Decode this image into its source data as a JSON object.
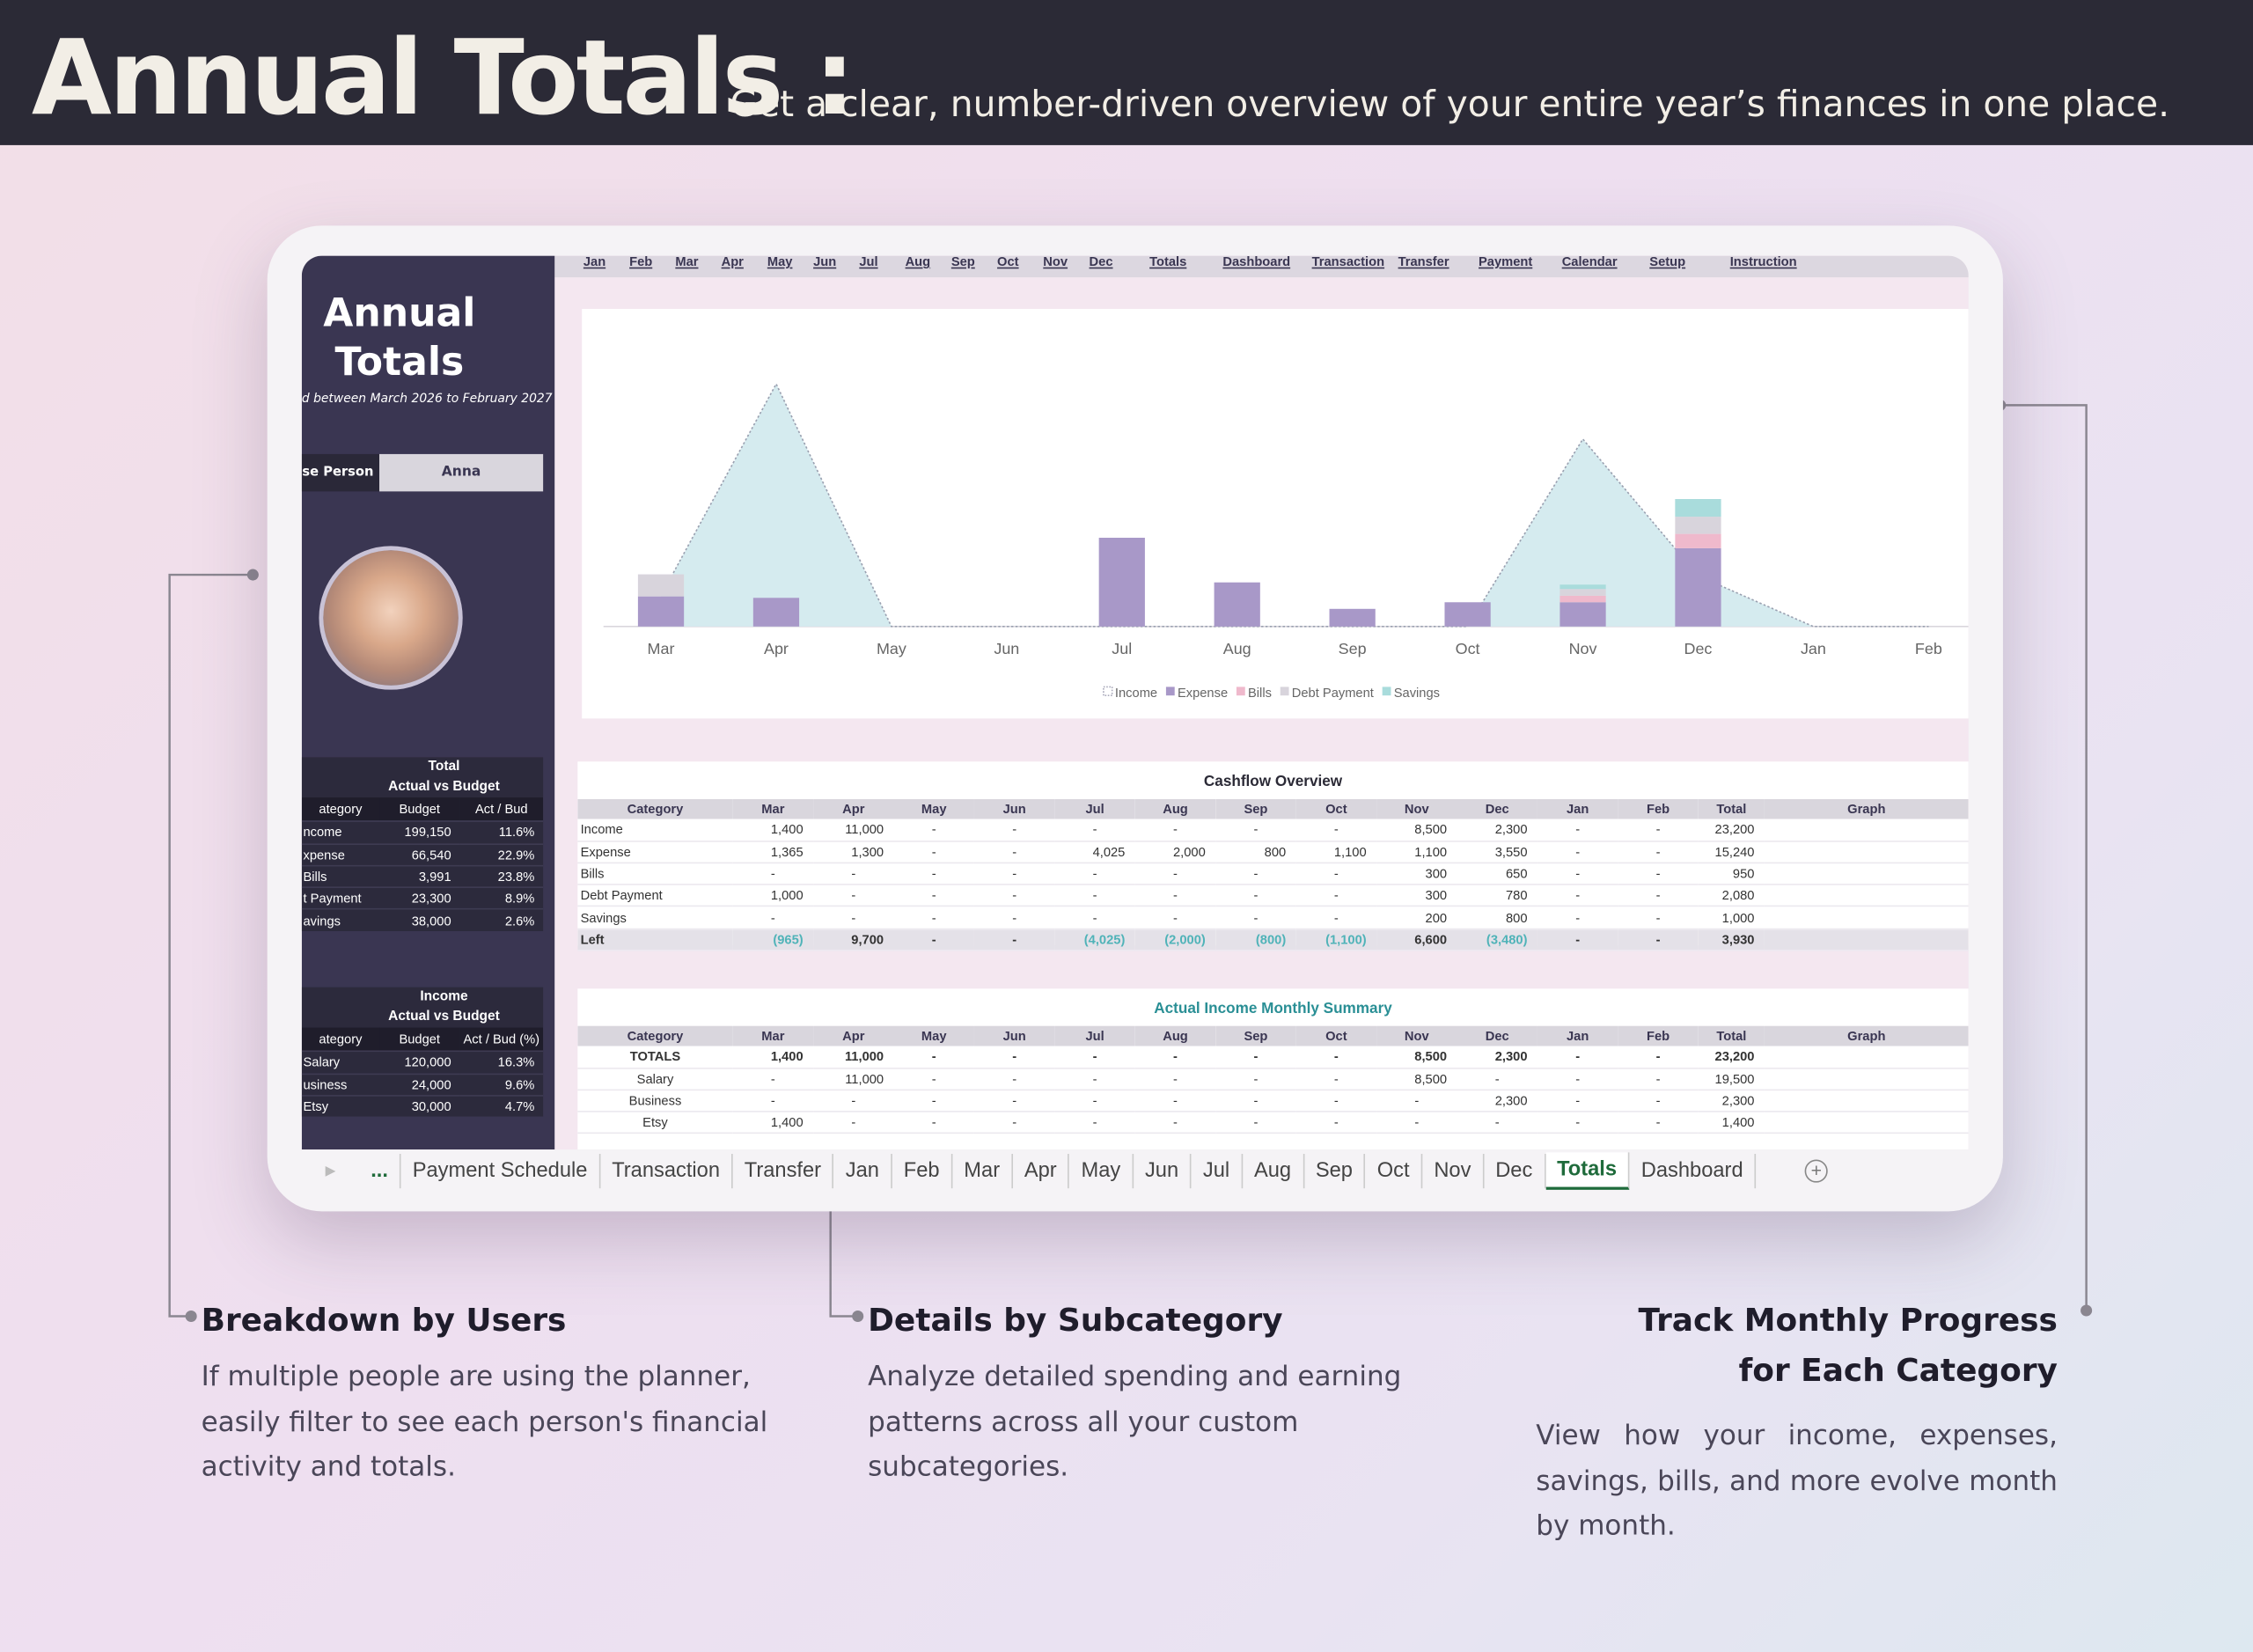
{
  "header": {
    "title": "Annual Totals :",
    "subtitle": "Get a clear, number-driven overview of your entire year’s finances in one place."
  },
  "nav_links": [
    "Jan",
    "Feb",
    "Mar",
    "Apr",
    "May",
    "Jun",
    "Jul",
    "Aug",
    "Sep",
    "Oct",
    "Nov",
    "Dec",
    "Totals",
    "Dashboard",
    "Transaction",
    "Transfer",
    "Payment",
    "Calendar",
    "Setup",
    "Instruction"
  ],
  "sidebar": {
    "title": "Annual Totals",
    "period": "d between  March 2026 to February 2027",
    "person_label": "se Person",
    "person_value": "Anna",
    "tables": [
      {
        "title": [
          "Total",
          "Actual vs Budget"
        ],
        "columns": [
          "ategory",
          "Budget",
          "Act / Bud"
        ],
        "rows": [
          [
            "ncome",
            "199,150",
            "11.6%"
          ],
          [
            "xpense",
            "66,540",
            "22.9%"
          ],
          [
            "Bills",
            "3,991",
            "23.8%"
          ],
          [
            "t Payment",
            "23,300",
            "8.9%"
          ],
          [
            "avings",
            "38,000",
            "2.6%"
          ]
        ]
      },
      {
        "title": [
          "Income",
          "Actual vs Budget"
        ],
        "columns": [
          "ategory",
          "Budget",
          "Act / Bud (%)"
        ],
        "rows": [
          [
            "Salary",
            "120,000",
            "16.3%"
          ],
          [
            "usiness",
            "24,000",
            "9.6%"
          ],
          [
            "Etsy",
            "30,000",
            "4.7%"
          ]
        ]
      }
    ]
  },
  "chart_data": {
    "type": "combo",
    "categories": [
      "Mar",
      "Apr",
      "May",
      "Jun",
      "Jul",
      "Aug",
      "Sep",
      "Oct",
      "Nov",
      "Dec",
      "Jan",
      "Feb"
    ],
    "ylim": [
      0,
      14400
    ],
    "series": [
      {
        "name": "Income",
        "color": "#d5ebef",
        "kind": "area",
        "values": [
          1400,
          11000,
          0,
          0,
          0,
          0,
          0,
          0,
          8500,
          2300,
          0,
          0
        ]
      },
      {
        "name": "Expense",
        "color": "#a898c8",
        "kind": "bar",
        "values": [
          1365,
          1300,
          0,
          0,
          4025,
          2000,
          800,
          1100,
          1100,
          3550,
          0,
          0
        ]
      },
      {
        "name": "Bills",
        "color": "#efb9cc",
        "kind": "bar",
        "values": [
          0,
          0,
          0,
          0,
          0,
          0,
          0,
          0,
          300,
          650,
          0,
          0
        ]
      },
      {
        "name": "Debt Payment",
        "color": "#d8d4dc",
        "kind": "bar",
        "values": [
          1000,
          0,
          0,
          0,
          0,
          0,
          0,
          0,
          300,
          780,
          0,
          0
        ]
      },
      {
        "name": "Savings",
        "color": "#a9dcdc",
        "kind": "bar",
        "values": [
          0,
          0,
          0,
          0,
          0,
          0,
          0,
          0,
          200,
          800,
          0,
          0
        ]
      }
    ]
  },
  "cashflow": {
    "title": "Cashflow Overview",
    "columns": [
      "Category",
      "Mar",
      "Apr",
      "May",
      "Jun",
      "Jul",
      "Aug",
      "Sep",
      "Oct",
      "Nov",
      "Dec",
      "Jan",
      "Feb",
      "Total",
      "Graph"
    ],
    "rows": [
      [
        "Income",
        "1,400",
        "11,000",
        "-",
        "-",
        "-",
        "-",
        "-",
        "-",
        "8,500",
        "2,300",
        "-",
        "-",
        "23,200"
      ],
      [
        "Expense",
        "1,365",
        "1,300",
        "-",
        "-",
        "4,025",
        "2,000",
        "800",
        "1,100",
        "1,100",
        "3,550",
        "-",
        "-",
        "15,240"
      ],
      [
        "Bills",
        "-",
        "-",
        "-",
        "-",
        "-",
        "-",
        "-",
        "-",
        "300",
        "650",
        "-",
        "-",
        "950"
      ],
      [
        "Debt Payment",
        "1,000",
        "-",
        "-",
        "-",
        "-",
        "-",
        "-",
        "-",
        "300",
        "780",
        "-",
        "-",
        "2,080"
      ],
      [
        "Savings",
        "-",
        "-",
        "-",
        "-",
        "-",
        "-",
        "-",
        "-",
        "200",
        "800",
        "-",
        "-",
        "1,000"
      ],
      [
        "Left",
        "(965)",
        "9,700",
        "-",
        "-",
        "(4,025)",
        "(2,000)",
        "(800)",
        "(1,100)",
        "6,600",
        "(3,480)",
        "-",
        "-",
        "3,930"
      ]
    ]
  },
  "income_summary": {
    "title": "Actual Income Monthly Summary",
    "columns": [
      "Category",
      "Mar",
      "Apr",
      "May",
      "Jun",
      "Jul",
      "Aug",
      "Sep",
      "Oct",
      "Nov",
      "Dec",
      "Jan",
      "Feb",
      "Total",
      "Graph"
    ],
    "rows": [
      [
        "TOTALS",
        "1,400",
        "11,000",
        "-",
        "-",
        "-",
        "-",
        "-",
        "-",
        "8,500",
        "2,300",
        "-",
        "-",
        "23,200"
      ],
      [
        "Salary",
        "-",
        "11,000",
        "-",
        "-",
        "-",
        "-",
        "-",
        "-",
        "8,500",
        "-",
        "-",
        "-",
        "19,500"
      ],
      [
        "Business",
        "-",
        "-",
        "-",
        "-",
        "-",
        "-",
        "-",
        "-",
        "-",
        "2,300",
        "-",
        "-",
        "2,300"
      ],
      [
        "Etsy",
        "1,400",
        "-",
        "-",
        "-",
        "-",
        "-",
        "-",
        "-",
        "-",
        "-",
        "-",
        "-",
        "1,400"
      ]
    ]
  },
  "tabs": {
    "items": [
      "...",
      "Payment Schedule",
      "Transaction",
      "Transfer",
      "Jan",
      "Feb",
      "Mar",
      "Apr",
      "May",
      "Jun",
      "Jul",
      "Aug",
      "Sep",
      "Oct",
      "Nov",
      "Dec",
      "Totals",
      "Dashboard"
    ],
    "active": 16
  },
  "callouts": [
    {
      "title": "Breakdown by Users",
      "body": "If multiple people are using the planner, easily filter to see each person's financial activity and totals."
    },
    {
      "title": "Details by Subcategory",
      "body": "Analyze detailed spending and earning patterns across all your custom subcategories."
    },
    {
      "title": "Track Monthly Progress for Each Category",
      "body": "View how your income, expenses, savings, bills, and more evolve month by month."
    }
  ]
}
